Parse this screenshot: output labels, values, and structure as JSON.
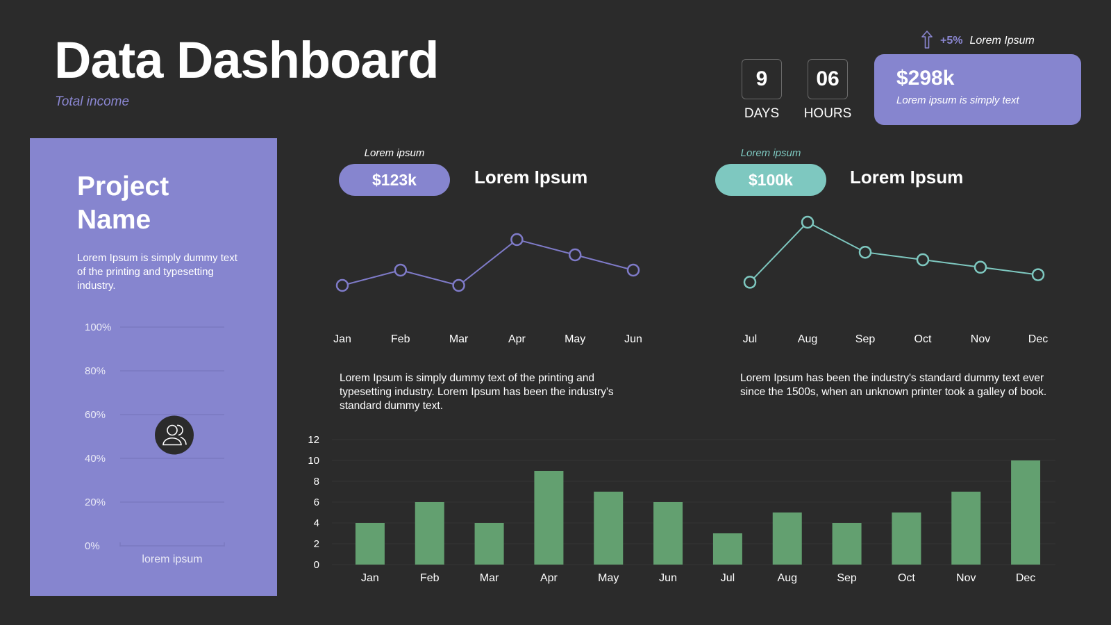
{
  "header": {
    "title": "Data Dashboard",
    "subtitle": "Total income"
  },
  "countdown": {
    "days_value": "9",
    "days_label": "DAYS",
    "hours_value": "06",
    "hours_label": "HOURS"
  },
  "trend": {
    "value": "+5%",
    "label": "Lorem Ipsum"
  },
  "income_card": {
    "value": "$298k",
    "description": "Lorem ipsum is simply text"
  },
  "project": {
    "name": "Project Name",
    "description": "Lorem Ipsum is simply dummy text of the printing and typesetting industry."
  },
  "kpi_left": {
    "caption": "Lorem ipsum",
    "value": "$123k",
    "heading": "Lorem Ipsum",
    "paragraph": "Lorem Ipsum is simply dummy text of the printing and typesetting industry. Lorem Ipsum has been the industry's standard dummy text."
  },
  "kpi_right": {
    "caption": "Lorem ipsum",
    "value": "$100k",
    "heading": "Lorem Ipsum",
    "paragraph": "Lorem Ipsum has been the industry's standard dummy text ever since the 1500s, when an unknown printer took a galley of book."
  },
  "colors": {
    "background": "#2b2b2b",
    "purple": "#8685cf",
    "purple_line": "#7f7bc9",
    "teal": "#7ec8c0",
    "green": "#63a070"
  },
  "icons": {
    "trend": "arrow-up-icon",
    "panel_marker": "users-icon"
  },
  "chart_data": [
    {
      "type": "line",
      "x": [
        "Jan",
        "Feb",
        "Mar",
        "Apr",
        "May",
        "Jun"
      ],
      "values": [
        2,
        3,
        2,
        5,
        4,
        3
      ],
      "ylim": [
        0,
        6
      ]
    },
    {
      "type": "line",
      "x": [
        "Jul",
        "Aug",
        "Sep",
        "Oct",
        "Nov",
        "Dec"
      ],
      "values": [
        2,
        10,
        6,
        5,
        4,
        3
      ],
      "ylim": [
        0,
        10
      ]
    },
    {
      "type": "bar",
      "categories": [
        "Jan",
        "Feb",
        "Mar",
        "Apr",
        "May",
        "Jun",
        "Jul",
        "Aug",
        "Sep",
        "Oct",
        "Nov",
        "Dec"
      ],
      "values": [
        4,
        6,
        4,
        9,
        7,
        6,
        3,
        5,
        4,
        5,
        7,
        10
      ],
      "yticks": [
        "0",
        "2",
        "4",
        "6",
        "8",
        "10",
        "12"
      ],
      "ylim": [
        0,
        12
      ],
      "grid": true
    },
    {
      "type": "bar",
      "yticks": [
        "0%",
        "20%",
        "40%",
        "60%",
        "80%",
        "100%"
      ],
      "ylim": [
        0,
        100
      ],
      "categories": [
        "lorem ipsum"
      ],
      "values": [
        50
      ],
      "grid": true
    }
  ]
}
